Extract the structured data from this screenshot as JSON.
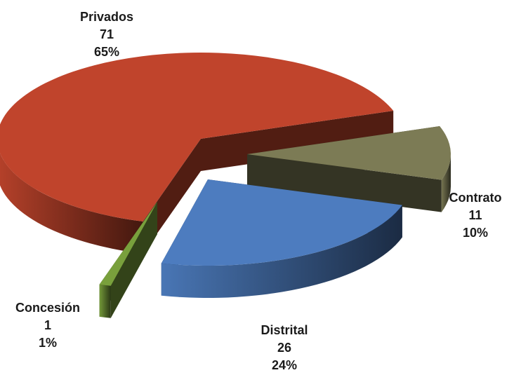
{
  "chart_data": {
    "type": "pie",
    "style": "3d-exploded",
    "slices": [
      {
        "label": "Privados",
        "value": 71,
        "percent": "65%",
        "color": "#c0442c"
      },
      {
        "label": "Contrato",
        "value": 11,
        "percent": "10%",
        "color": "#7c7b55"
      },
      {
        "label": "Distrital",
        "value": 26,
        "percent": "24%",
        "color": "#4d7cbf"
      },
      {
        "label": "Concesión",
        "value": 1,
        "percent": "1%",
        "color": "#79a03c"
      }
    ],
    "legend": "none"
  }
}
